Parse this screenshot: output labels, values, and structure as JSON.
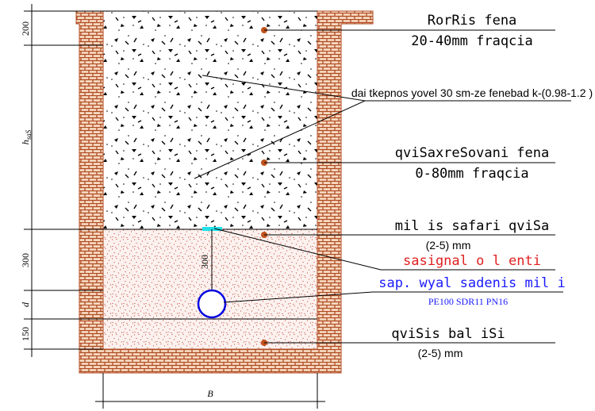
{
  "dimensions": {
    "top": "200",
    "h": "h",
    "h_sub": "saS",
    "sand": "300",
    "d": "d",
    "bottom": "150",
    "width": "B",
    "tape_depth": "300"
  },
  "labels": {
    "crushed_stone": "RorRis fena",
    "crushed_stone_fraction": "20-40mm fraqcia",
    "compaction_note": "dai tkepnos yovel 30 sm-ze fenebad k-(0.98-1.2 )",
    "sand_gravel": "qviSaxreSovani fena",
    "sand_gravel_fraction": "0-80mm fraqcia",
    "crushed_sand": "mil is safari qviSa",
    "crushed_sand_fraction": "(2-5) mm",
    "signal_tape": "sasignal o l enti",
    "water_pipe": "sap. wyal sadenis mil i",
    "pipe_spec": "PE100 SDR11 PN16",
    "sand_bed": "qviSis bal iSi",
    "sand_bed_fraction": "(2-5) mm"
  }
}
